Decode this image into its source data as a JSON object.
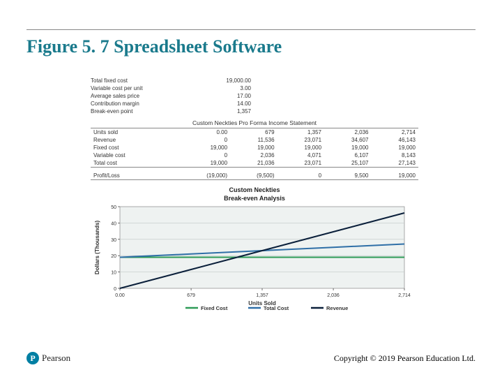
{
  "title": {
    "text": "Figure 5. 7 Spreadsheet Software",
    "color": "#1a7a8c",
    "fontsize": 26
  },
  "assumptions": {
    "labels": [
      "Total fixed cost",
      "Variable cost per unit",
      "Average sales price",
      "Contribution margin",
      "Break-even point"
    ],
    "values": [
      "19,000.00",
      "3.00",
      "17.00",
      "14.00",
      "1,357"
    ]
  },
  "income_statement": {
    "title": "Custom Neckties Pro Forma Income Statement",
    "row_labels": [
      "Units sold",
      "Revenue",
      "Fixed cost",
      "Variable cost",
      "Total cost",
      "Profit/Loss"
    ],
    "columns": [
      [
        "0.00",
        "0",
        "19,000",
        "0",
        "19,000",
        "(19,000)"
      ],
      [
        "679",
        "11,536",
        "19,000",
        "2,036",
        "21,036",
        "(9,500)"
      ],
      [
        "1,357",
        "23,071",
        "19,000",
        "4,071",
        "23,071",
        "0"
      ],
      [
        "2,036",
        "34,607",
        "19,000",
        "6,107",
        "25,107",
        "9,500"
      ],
      [
        "2,714",
        "46,143",
        "19,000",
        "8,143",
        "27,143",
        "19,000"
      ]
    ]
  },
  "chart": {
    "type": "line",
    "title_line1": "Custom Neckties",
    "title_line2": "Break-even Analysis",
    "xlabel": "Units Sold",
    "ylabel": "Dollars (Thousands)",
    "label_fontsize": 8,
    "tick_fontsize": 7,
    "background_color": "#eef2f1",
    "plot_border_color": "#888888",
    "grid_color": "#bfc7c5",
    "xlim": [
      0,
      2714
    ],
    "xticks": [
      0,
      679,
      1357,
      2036,
      2714
    ],
    "xtick_labels": [
      "0.00",
      "679",
      "1,357",
      "2,036",
      "2,714"
    ],
    "ylim": [
      0,
      50
    ],
    "yticks": [
      0,
      10,
      20,
      30,
      40,
      50
    ],
    "ytick_labels": [
      "0",
      "10",
      "20",
      "30",
      "40",
      "50"
    ],
    "series": [
      {
        "name": "Fixed Cost",
        "color": "#2e9b57",
        "width": 2,
        "y": [
          19,
          19,
          19,
          19,
          19
        ]
      },
      {
        "name": "Total Cost",
        "color": "#2f6fa7",
        "width": 2,
        "y": [
          19,
          21.036,
          23.071,
          25.107,
          27.143
        ]
      },
      {
        "name": "Revenue",
        "color": "#0a1f3a",
        "width": 2,
        "y": [
          0,
          11.536,
          23.071,
          34.607,
          46.143
        ]
      }
    ],
    "legend": [
      "Fixed Cost",
      "Total Cost",
      "Revenue"
    ]
  },
  "footer": {
    "brand": "Pearson",
    "copyright": "Copyright © 2019 Pearson Education Ltd."
  }
}
